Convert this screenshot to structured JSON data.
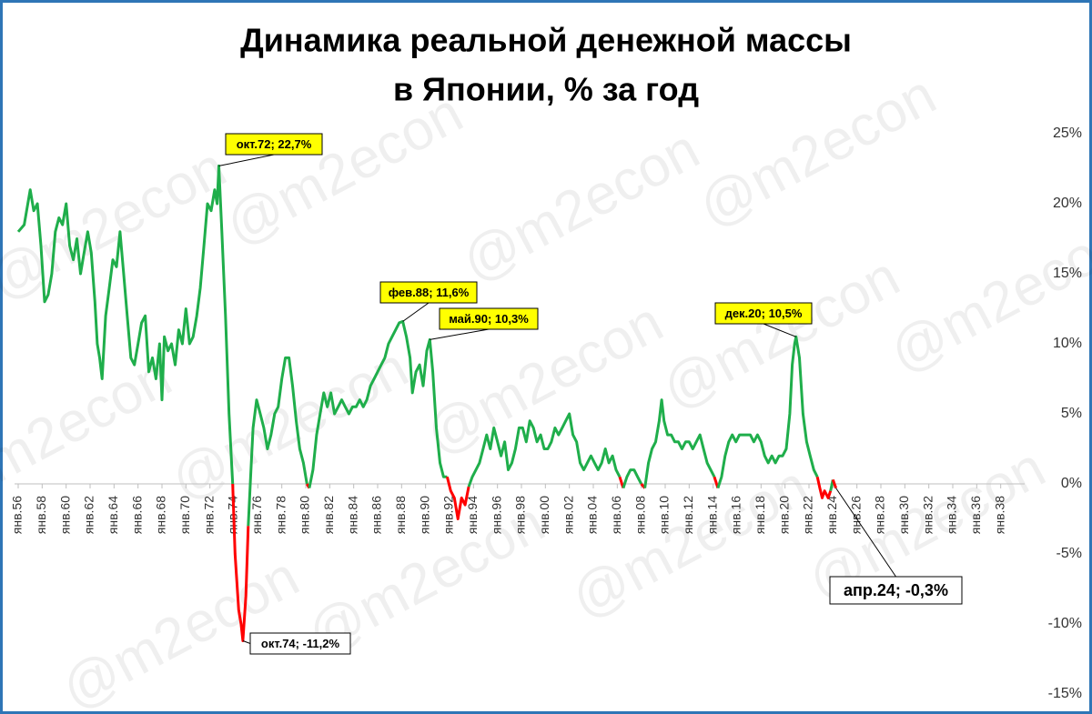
{
  "chart_data": {
    "type": "line",
    "title": [
      "Динамика реальной денежной массы",
      "в Японии, % за год"
    ],
    "watermark": "@m2econ",
    "positive_color": "#1fae4b",
    "negative_color": "#ff0000",
    "xlim": [
      1956,
      2040
    ],
    "ylim": [
      -15,
      25
    ],
    "y_axis_side": "right",
    "grid": false,
    "yticks": [
      {
        "value": 25,
        "label": "25%"
      },
      {
        "value": 20,
        "label": "20%"
      },
      {
        "value": 15,
        "label": "15%"
      },
      {
        "value": 10,
        "label": "10%"
      },
      {
        "value": 5,
        "label": "5%"
      },
      {
        "value": 0,
        "label": "0%"
      },
      {
        "value": -5,
        "label": "-5%"
      },
      {
        "value": -10,
        "label": "-10%"
      },
      {
        "value": -15,
        "label": "-15%"
      }
    ],
    "xticks": [
      {
        "value": 1956,
        "label": "янв.56"
      },
      {
        "value": 1958,
        "label": "янв.58"
      },
      {
        "value": 1960,
        "label": "янв.60"
      },
      {
        "value": 1962,
        "label": "янв.62"
      },
      {
        "value": 1964,
        "label": "янв.64"
      },
      {
        "value": 1966,
        "label": "янв.66"
      },
      {
        "value": 1968,
        "label": "янв.68"
      },
      {
        "value": 1970,
        "label": "янв.70"
      },
      {
        "value": 1972,
        "label": "янв.72"
      },
      {
        "value": 1974,
        "label": "янв.74"
      },
      {
        "value": 1976,
        "label": "янв.76"
      },
      {
        "value": 1978,
        "label": "янв.78"
      },
      {
        "value": 1980,
        "label": "янв.80"
      },
      {
        "value": 1982,
        "label": "янв.82"
      },
      {
        "value": 1984,
        "label": "янв.84"
      },
      {
        "value": 1986,
        "label": "янв.86"
      },
      {
        "value": 1988,
        "label": "янв.88"
      },
      {
        "value": 1990,
        "label": "янв.90"
      },
      {
        "value": 1992,
        "label": "янв.92"
      },
      {
        "value": 1994,
        "label": "янв.94"
      },
      {
        "value": 1996,
        "label": "янв.96"
      },
      {
        "value": 1998,
        "label": "янв.98"
      },
      {
        "value": 2000,
        "label": "янв.00"
      },
      {
        "value": 2002,
        "label": "янв.02"
      },
      {
        "value": 2004,
        "label": "янв.04"
      },
      {
        "value": 2006,
        "label": "янв.06"
      },
      {
        "value": 2008,
        "label": "янв.08"
      },
      {
        "value": 2010,
        "label": "янв.10"
      },
      {
        "value": 2012,
        "label": "янв.12"
      },
      {
        "value": 2014,
        "label": "янв.14"
      },
      {
        "value": 2016,
        "label": "янв.16"
      },
      {
        "value": 2018,
        "label": "янв.18"
      },
      {
        "value": 2020,
        "label": "янв.20"
      },
      {
        "value": 2022,
        "label": "янв.22"
      },
      {
        "value": 2024,
        "label": "янв.24"
      },
      {
        "value": 2026,
        "label": "янв.26"
      },
      {
        "value": 2028,
        "label": "янв.28"
      },
      {
        "value": 2030,
        "label": "янв.30"
      },
      {
        "value": 2032,
        "label": "янв.32"
      },
      {
        "value": 2034,
        "label": "янв.34"
      },
      {
        "value": 2036,
        "label": "янв.36"
      },
      {
        "value": 2038,
        "label": "янв.38"
      }
    ],
    "x": [
      1956.0,
      1956.5,
      1957.0,
      1957.3,
      1957.6,
      1957.9,
      1958.2,
      1958.5,
      1958.8,
      1959.1,
      1959.4,
      1959.7,
      1960.0,
      1960.3,
      1960.6,
      1960.9,
      1961.2,
      1961.5,
      1961.8,
      1962.1,
      1962.4,
      1962.6,
      1962.8,
      1963.0,
      1963.3,
      1963.6,
      1963.9,
      1964.2,
      1964.5,
      1964.8,
      1965.1,
      1965.4,
      1965.7,
      1966.0,
      1966.3,
      1966.6,
      1966.9,
      1967.2,
      1967.5,
      1967.8,
      1968.0,
      1968.2,
      1968.5,
      1968.8,
      1969.1,
      1969.4,
      1969.7,
      1970.0,
      1970.3,
      1970.6,
      1970.9,
      1971.2,
      1971.5,
      1971.8,
      1972.1,
      1972.4,
      1972.6,
      1972.75,
      1973.0,
      1973.3,
      1973.6,
      1973.9,
      1974.1,
      1974.4,
      1974.6,
      1974.75,
      1975.0,
      1975.2,
      1975.4,
      1975.6,
      1975.9,
      1976.2,
      1976.5,
      1976.8,
      1977.1,
      1977.4,
      1977.7,
      1978.0,
      1978.3,
      1978.6,
      1978.9,
      1979.2,
      1979.5,
      1979.8,
      1980.1,
      1980.3,
      1980.6,
      1980.9,
      1981.2,
      1981.5,
      1981.8,
      1982.1,
      1982.4,
      1982.7,
      1983.0,
      1983.3,
      1983.6,
      1983.9,
      1984.2,
      1984.5,
      1984.8,
      1985.1,
      1985.4,
      1985.7,
      1986.0,
      1986.3,
      1986.6,
      1986.9,
      1987.2,
      1987.5,
      1987.8,
      1988.1,
      1988.4,
      1988.7,
      1988.9,
      1989.2,
      1989.5,
      1989.8,
      1990.1,
      1990.35,
      1990.6,
      1990.9,
      1991.2,
      1991.5,
      1991.8,
      1992.1,
      1992.4,
      1992.7,
      1993.0,
      1993.3,
      1993.6,
      1993.9,
      1994.2,
      1994.5,
      1994.8,
      1995.1,
      1995.4,
      1995.7,
      1996.0,
      1996.3,
      1996.6,
      1996.9,
      1997.2,
      1997.5,
      1997.8,
      1998.1,
      1998.4,
      1998.7,
      1999.0,
      1999.3,
      1999.6,
      1999.9,
      2000.2,
      2000.5,
      2000.8,
      2001.1,
      2001.4,
      2001.7,
      2002.0,
      2002.3,
      2002.6,
      2002.9,
      2003.2,
      2003.5,
      2003.8,
      2004.1,
      2004.4,
      2004.7,
      2005.0,
      2005.3,
      2005.6,
      2005.9,
      2006.2,
      2006.5,
      2006.8,
      2007.1,
      2007.4,
      2007.7,
      2008.0,
      2008.3,
      2008.6,
      2008.9,
      2009.2,
      2009.5,
      2009.7,
      2009.9,
      2010.2,
      2010.5,
      2010.8,
      2011.1,
      2011.4,
      2011.7,
      2012.0,
      2012.3,
      2012.6,
      2012.9,
      2013.2,
      2013.5,
      2013.8,
      2014.1,
      2014.4,
      2014.7,
      2015.0,
      2015.3,
      2015.6,
      2015.9,
      2016.2,
      2016.5,
      2016.8,
      2017.1,
      2017.4,
      2017.7,
      2018.0,
      2018.3,
      2018.6,
      2018.9,
      2019.2,
      2019.5,
      2019.8,
      2020.1,
      2020.4,
      2020.6,
      2020.8,
      2020.92,
      2021.2,
      2021.5,
      2021.8,
      2022.1,
      2022.4,
      2022.7,
      2022.9,
      2023.1,
      2023.3,
      2023.6,
      2023.8,
      2024.0,
      2024.25
    ],
    "values": [
      18,
      18.5,
      21,
      19.5,
      20,
      17,
      13,
      13.5,
      15,
      18,
      19,
      18.5,
      20,
      17,
      16,
      17.5,
      15,
      16.5,
      18,
      16.5,
      13,
      10,
      9,
      7.5,
      12,
      14,
      16,
      15.5,
      18,
      15,
      12,
      9,
      8.5,
      10,
      11.5,
      12,
      8,
      9,
      7.5,
      10,
      6,
      10.5,
      9.5,
      10,
      8.5,
      11,
      10,
      12.5,
      10,
      10.5,
      12,
      14,
      17,
      20,
      19.5,
      21,
      20,
      22.7,
      18,
      12,
      5,
      0,
      -5,
      -9,
      -10,
      -11.2,
      -8,
      -3,
      0.5,
      4,
      6,
      5,
      4,
      2.5,
      3.5,
      5,
      5.5,
      7.5,
      9,
      9,
      7,
      4.5,
      2.5,
      1.5,
      0,
      -0.3,
      1,
      3.5,
      5,
      6.5,
      5.5,
      6.5,
      5,
      5.5,
      6,
      5.5,
      5,
      5.5,
      5.5,
      6,
      5.5,
      6,
      7,
      7.5,
      8,
      8.5,
      9,
      10,
      10.5,
      11,
      11.5,
      11.6,
      10.5,
      9,
      6.5,
      8,
      8.5,
      7,
      9.5,
      10.3,
      8,
      4,
      1.5,
      0.5,
      0.5,
      -0.5,
      -1,
      -2.5,
      -1,
      -1.5,
      -0.2,
      0.5,
      1,
      1.5,
      2.5,
      3.5,
      2.5,
      4,
      3,
      2,
      3,
      1,
      1.5,
      2.5,
      4,
      4,
      3,
      4.5,
      4,
      3,
      3.5,
      2.5,
      2.5,
      3,
      4,
      3.5,
      4,
      4.5,
      5,
      3.5,
      3,
      1.5,
      1,
      1.5,
      2,
      1.5,
      1,
      1.5,
      2.5,
      1.5,
      2,
      1,
      0.5,
      -0.3,
      0.5,
      1,
      1,
      0.5,
      0,
      -0.3,
      1.5,
      2.5,
      3,
      4.5,
      6,
      4.5,
      3.5,
      3.5,
      3,
      3,
      2.5,
      3,
      3,
      2.5,
      3,
      3.5,
      2.5,
      1.5,
      1,
      0.5,
      -0.3,
      0.5,
      2,
      3,
      3.5,
      3,
      3.5,
      3.5,
      3.5,
      3.5,
      3,
      3.5,
      3,
      2,
      1.5,
      2,
      1.5,
      2,
      2,
      2.5,
      5,
      8.5,
      10,
      10.5,
      9,
      5,
      3,
      2,
      1,
      0.5,
      -0.3,
      -1,
      -0.5,
      -1,
      -0.5,
      0.3,
      -0.3
    ],
    "annotations": [
      {
        "text": "окт.72; 22,7%",
        "x": 1972.75,
        "y": 22.7
      },
      {
        "text": "окт.74; -11,2%",
        "x": 1974.75,
        "y": -11.2
      },
      {
        "text": "фев.88; 11,6%",
        "x": 1988.1,
        "y": 11.6
      },
      {
        "text": "май.90; 10,3%",
        "x": 1990.35,
        "y": 10.3
      },
      {
        "text": "дек.20; 10,5%",
        "x": 2020.92,
        "y": 10.5
      },
      {
        "text": "апр.24; -0,3%",
        "x": 2024.25,
        "y": -0.3
      }
    ]
  }
}
